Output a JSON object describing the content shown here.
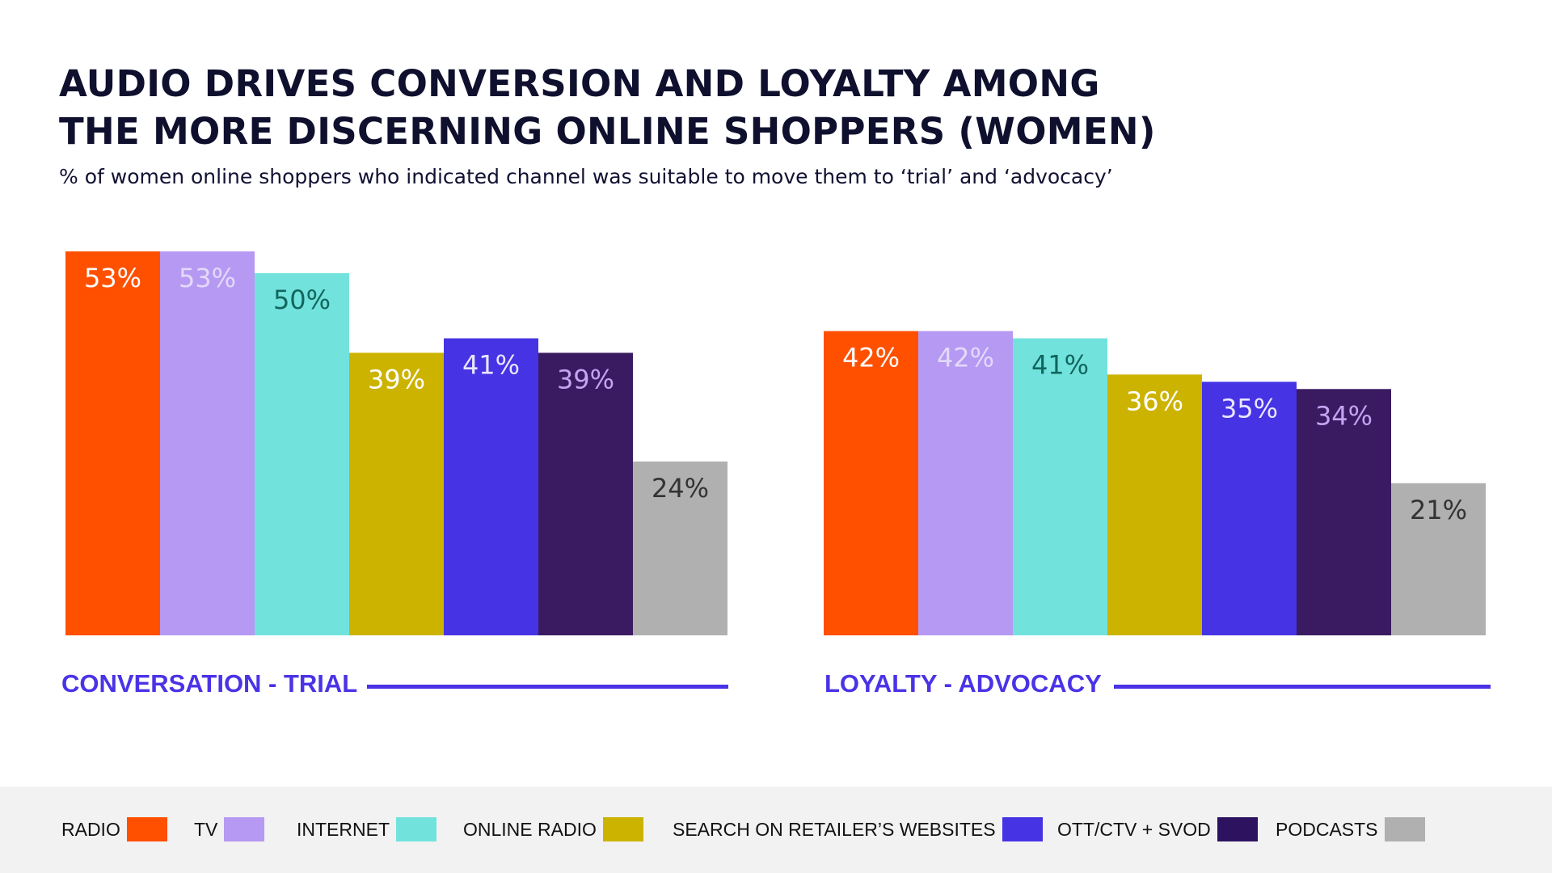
{
  "header": {
    "title_line1": "AUDIO DRIVES CONVERSION AND LOYALTY AMONG",
    "title_line2": "THE MORE DISCERNING ONLINE SHOPPERS (WOMEN)",
    "subtitle": "% of women online shoppers who indicated channel was suitable to move them to ‘trial’ and ‘advocacy’"
  },
  "chart_data": [
    {
      "type": "bar",
      "group_label": "CONVERSATION - TRIAL",
      "categories": [
        "RADIO",
        "TV",
        "INTERNET",
        "ONLINE RADIO",
        "SEARCH ON RETAILER'S WEBSITES",
        "OTT/CTV + SVOD",
        "PODCASTS"
      ],
      "values": [
        53,
        53,
        50,
        39,
        41,
        39,
        24
      ],
      "data_labels": [
        "53%",
        "53%",
        "50%",
        "39%",
        "41%",
        "39%",
        "24%"
      ],
      "ylim": [
        0,
        53
      ],
      "grid": false,
      "legend": "bottom"
    },
    {
      "type": "bar",
      "group_label": "LOYALTY - ADVOCACY",
      "categories": [
        "RADIO",
        "TV",
        "INTERNET",
        "ONLINE RADIO",
        "SEARCH ON RETAILER'S WEBSITES",
        "OTT/CTV + SVOD",
        "PODCASTS"
      ],
      "values": [
        42,
        42,
        41,
        36,
        35,
        34,
        21
      ],
      "data_labels": [
        "42%",
        "42%",
        "41%",
        "36%",
        "35%",
        "34%",
        "21%"
      ],
      "ylim": [
        0,
        53
      ],
      "grid": false,
      "legend": "bottom"
    }
  ],
  "series_colors": [
    "#ff5000",
    "#b699f2",
    "#72e2dc",
    "#ccb300",
    "#4633e3",
    "#3a1b61",
    "#b0b0b0"
  ],
  "label_colors": [
    "#ffffff",
    "#e3d9fb",
    "#11665e",
    "#ffffff",
    "#e9e6ff",
    "#c3a4f2",
    "#333333"
  ],
  "legend": {
    "items": [
      {
        "label": "RADIO",
        "color": "#ff5000"
      },
      {
        "label": "TV",
        "color": "#b699f2"
      },
      {
        "label": "INTERNET",
        "color": "#72e2dc"
      },
      {
        "label": "ONLINE RADIO",
        "color": "#ccb300"
      },
      {
        "label": "SEARCH ON RETAILER’S WEBSITES",
        "color": "#4633e3"
      },
      {
        "label": "OTT/CTV + SVOD",
        "color": "#2d1260"
      },
      {
        "label": "PODCASTS",
        "color": "#b0b0b0"
      }
    ]
  }
}
